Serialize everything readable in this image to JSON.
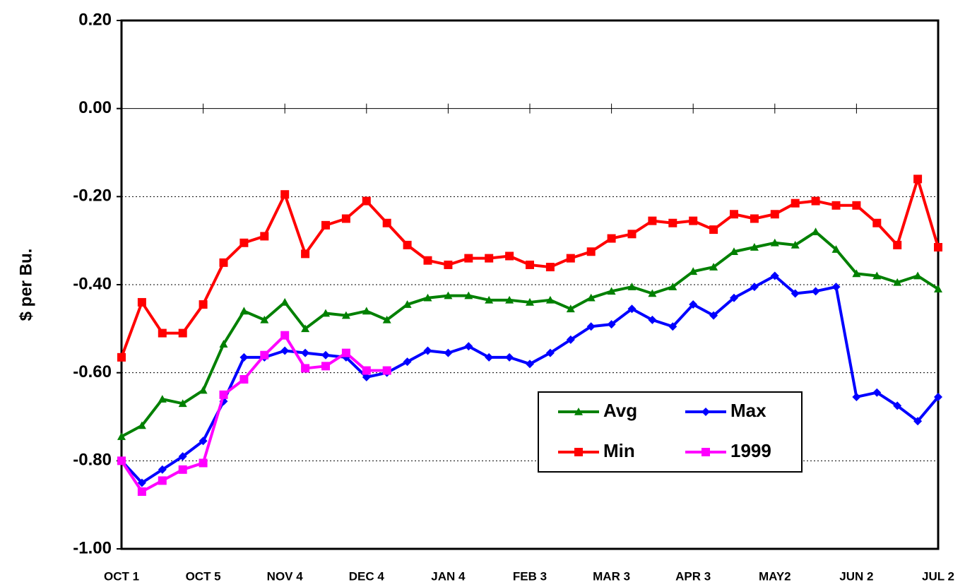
{
  "chart_data": {
    "type": "line",
    "y_label": "$ per Bu.",
    "categories": [
      "OCT 1",
      null,
      null,
      null,
      "OCT 5",
      null,
      null,
      null,
      "NOV 4",
      null,
      null,
      null,
      "DEC 4",
      null,
      null,
      null,
      "JAN 4",
      null,
      null,
      null,
      "FEB 3",
      null,
      null,
      null,
      "MAR 3",
      null,
      null,
      null,
      "APR 3",
      null,
      null,
      null,
      "MAY2",
      null,
      null,
      null,
      "JUN 2",
      null,
      null,
      null,
      "JUL 2"
    ],
    "ylim": [
      -1.0,
      0.2
    ],
    "yticks": [
      {
        "value": -1.0,
        "label": "-1.00"
      },
      {
        "value": -0.8,
        "label": "-0.80"
      },
      {
        "value": -0.6,
        "label": "-0.60"
      },
      {
        "value": -0.4,
        "label": "-0.40"
      },
      {
        "value": -0.2,
        "label": "-0.20"
      },
      {
        "value": 0,
        "label": "0.00"
      },
      {
        "value": 0.2,
        "label": "0.20"
      }
    ],
    "grid": true,
    "series": [
      {
        "name": "Avg",
        "color": "#008000",
        "marker": "triangle",
        "values": [
          -0.745,
          -0.72,
          -0.66,
          -0.67,
          -0.64,
          -0.535,
          -0.46,
          -0.48,
          -0.44,
          -0.5,
          -0.465,
          -0.47,
          -0.46,
          -0.48,
          -0.445,
          -0.43,
          -0.425,
          -0.425,
          -0.435,
          -0.435,
          -0.44,
          -0.435,
          -0.455,
          -0.43,
          -0.415,
          -0.405,
          -0.42,
          -0.405,
          -0.37,
          -0.36,
          -0.325,
          -0.315,
          -0.305,
          -0.31,
          -0.28,
          -0.32,
          -0.375,
          -0.38,
          -0.395,
          -0.38,
          -0.41
        ]
      },
      {
        "name": "Max",
        "color": "#0000ff",
        "marker": "diamond",
        "values": [
          -0.8,
          -0.85,
          -0.82,
          -0.79,
          -0.755,
          -0.665,
          -0.565,
          -0.565,
          -0.55,
          -0.555,
          -0.56,
          -0.565,
          -0.61,
          -0.6,
          -0.575,
          -0.55,
          -0.555,
          -0.54,
          -0.565,
          -0.565,
          -0.58,
          -0.555,
          -0.525,
          -0.495,
          -0.49,
          -0.455,
          -0.48,
          -0.495,
          -0.445,
          -0.47,
          -0.43,
          -0.405,
          -0.38,
          -0.42,
          -0.415,
          -0.405,
          -0.655,
          -0.645,
          -0.675,
          -0.71,
          -0.655
        ]
      },
      {
        "name": "Min",
        "color": "#ff0000",
        "marker": "square",
        "values": [
          -0.565,
          -0.44,
          -0.51,
          -0.51,
          -0.445,
          -0.35,
          -0.305,
          -0.29,
          -0.195,
          -0.33,
          -0.265,
          -0.25,
          -0.21,
          -0.26,
          -0.31,
          -0.345,
          -0.355,
          -0.34,
          -0.34,
          -0.335,
          -0.355,
          -0.36,
          -0.34,
          -0.325,
          -0.295,
          -0.285,
          -0.255,
          -0.26,
          -0.255,
          -0.275,
          -0.24,
          -0.25,
          -0.24,
          -0.215,
          -0.21,
          -0.22,
          -0.22,
          -0.26,
          -0.31,
          -0.16,
          -0.315
        ]
      },
      {
        "name": "1999",
        "color": "#ff00ff",
        "marker": "square",
        "values": [
          -0.8,
          -0.87,
          -0.845,
          -0.82,
          -0.805,
          -0.65,
          -0.615,
          -0.56,
          -0.515,
          -0.59,
          -0.585,
          -0.555,
          -0.595,
          -0.595,
          null,
          null,
          null,
          null,
          null,
          null,
          null,
          null,
          null,
          null,
          null,
          null,
          null,
          null,
          null,
          null,
          null,
          null,
          null,
          null,
          null,
          null,
          null,
          null,
          null,
          null,
          null
        ]
      }
    ]
  }
}
